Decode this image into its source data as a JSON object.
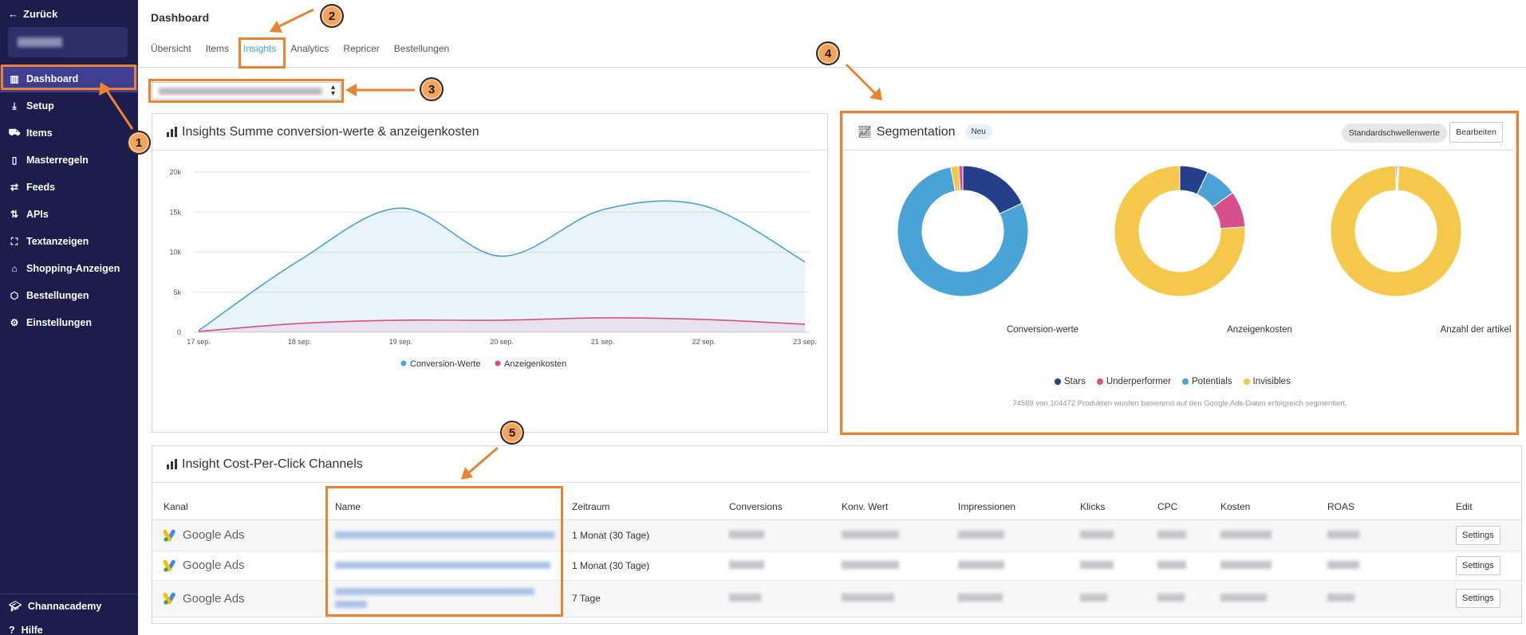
{
  "sidebar": {
    "back_label": "Zurück",
    "items": [
      {
        "label": "Dashboard",
        "icon": "bar-chart-icon",
        "active": true
      },
      {
        "label": "Setup",
        "icon": "download-icon"
      },
      {
        "label": "Items",
        "icon": "cart-icon"
      },
      {
        "label": "Masterregeln",
        "icon": "clipboard-icon"
      },
      {
        "label": "Feeds",
        "icon": "arrows-exchange-icon"
      },
      {
        "label": "APIs",
        "icon": "sort-arrows-icon"
      },
      {
        "label": "Textanzeigen",
        "icon": "frame-icon"
      },
      {
        "label": "Shopping-Anzeigen",
        "icon": "bag-icon"
      },
      {
        "label": "Bestellungen",
        "icon": "box-icon"
      },
      {
        "label": "Einstellungen",
        "icon": "gear-icon"
      }
    ],
    "bottom": [
      {
        "label": "Channacademy",
        "icon": "graduation-cap-icon"
      },
      {
        "label": "Hilfe",
        "icon": "help-icon"
      }
    ]
  },
  "header": {
    "title": "Dashboard",
    "tabs": [
      {
        "label": "Übersicht"
      },
      {
        "label": "Items"
      },
      {
        "label": "Insights",
        "active": true
      },
      {
        "label": "Analytics"
      },
      {
        "label": "Repricer"
      },
      {
        "label": "Bestellungen"
      }
    ]
  },
  "insights_chart": {
    "title": "Insights Summe conversion-werte & anzeigenkosten"
  },
  "chart_data": [
    {
      "type": "area",
      "title": "Insights Summe conversion-werte & anzeigenkosten",
      "categories": [
        "17 sep.",
        "18 sep.",
        "19 sep.",
        "20 sep.",
        "21 sep.",
        "22 sep.",
        "23 sep."
      ],
      "y_ticks": [
        "0",
        "5k",
        "10k",
        "15k",
        "20k"
      ],
      "ylim": [
        0,
        20000
      ],
      "series": [
        {
          "name": "Conversion-Werte",
          "color": "#4aa3d6",
          "values": [
            200,
            9000,
            15500,
            9500,
            15300,
            15800,
            8800
          ]
        },
        {
          "name": "Anzeigenkosten",
          "color": "#d6508b",
          "values": [
            100,
            1100,
            1500,
            1500,
            1800,
            1600,
            1000
          ]
        }
      ],
      "legend": "bottom",
      "grid": true
    },
    {
      "type": "pie",
      "title": "Conversion-werte",
      "categories": [
        "Stars",
        "Underperformer",
        "Potentials",
        "Invisibles"
      ],
      "values": [
        18,
        1,
        79,
        2
      ]
    },
    {
      "type": "pie",
      "title": "Anzeigenkosten",
      "categories": [
        "Stars",
        "Underperformer",
        "Potentials",
        "Invisibles"
      ],
      "values": [
        7,
        9,
        8,
        76
      ]
    },
    {
      "type": "pie",
      "title": "Anzahl der artikel",
      "categories": [
        "Stars",
        "Underperformer",
        "Potentials",
        "Invisibles"
      ],
      "values": [
        0.3,
        0.1,
        0.3,
        99.3
      ]
    }
  ],
  "segmentation": {
    "title": "Segmentation",
    "badge": "Neu",
    "btn_defaults": "Standardschwellenwerte",
    "btn_edit": "Bearbeiten",
    "donut_labels": [
      "Conversion-werte",
      "Anzeigenkosten",
      "Anzahl der artikel"
    ],
    "legend": [
      {
        "name": "Stars",
        "color": "#263f8c"
      },
      {
        "name": "Underperformer",
        "color": "#d6508b"
      },
      {
        "name": "Potentials",
        "color": "#4aa3d6"
      },
      {
        "name": "Invisibles",
        "color": "#f4c84a"
      }
    ],
    "note": "74589 von 104472 Produkten wurden basierend auf den Google Ads-Daten erfolgreich segmentiert."
  },
  "cpc_table": {
    "title": "Insight Cost-Per-Click Channels",
    "columns": [
      "Kanal",
      "Name",
      "Zeitraum",
      "Conversions",
      "Konv. Wert",
      "Impressionen",
      "Klicks",
      "CPC",
      "Kosten",
      "ROAS",
      "Edit"
    ],
    "rows": [
      {
        "kanal": "Google Ads",
        "zeitraum": "1 Monat (30 Tage)",
        "edit": "Settings"
      },
      {
        "kanal": "Google Ads",
        "zeitraum": "1 Monat (30 Tage)",
        "edit": "Settings"
      },
      {
        "kanal": "Google Ads",
        "zeitraum": "7 Tage",
        "edit": "Settings"
      }
    ]
  },
  "annotations": [
    "1",
    "2",
    "3",
    "4",
    "5"
  ],
  "colors": {
    "accent": "#e9832f",
    "sidebar": "#1c1d4c",
    "tab_active": "#3ea3d8"
  }
}
